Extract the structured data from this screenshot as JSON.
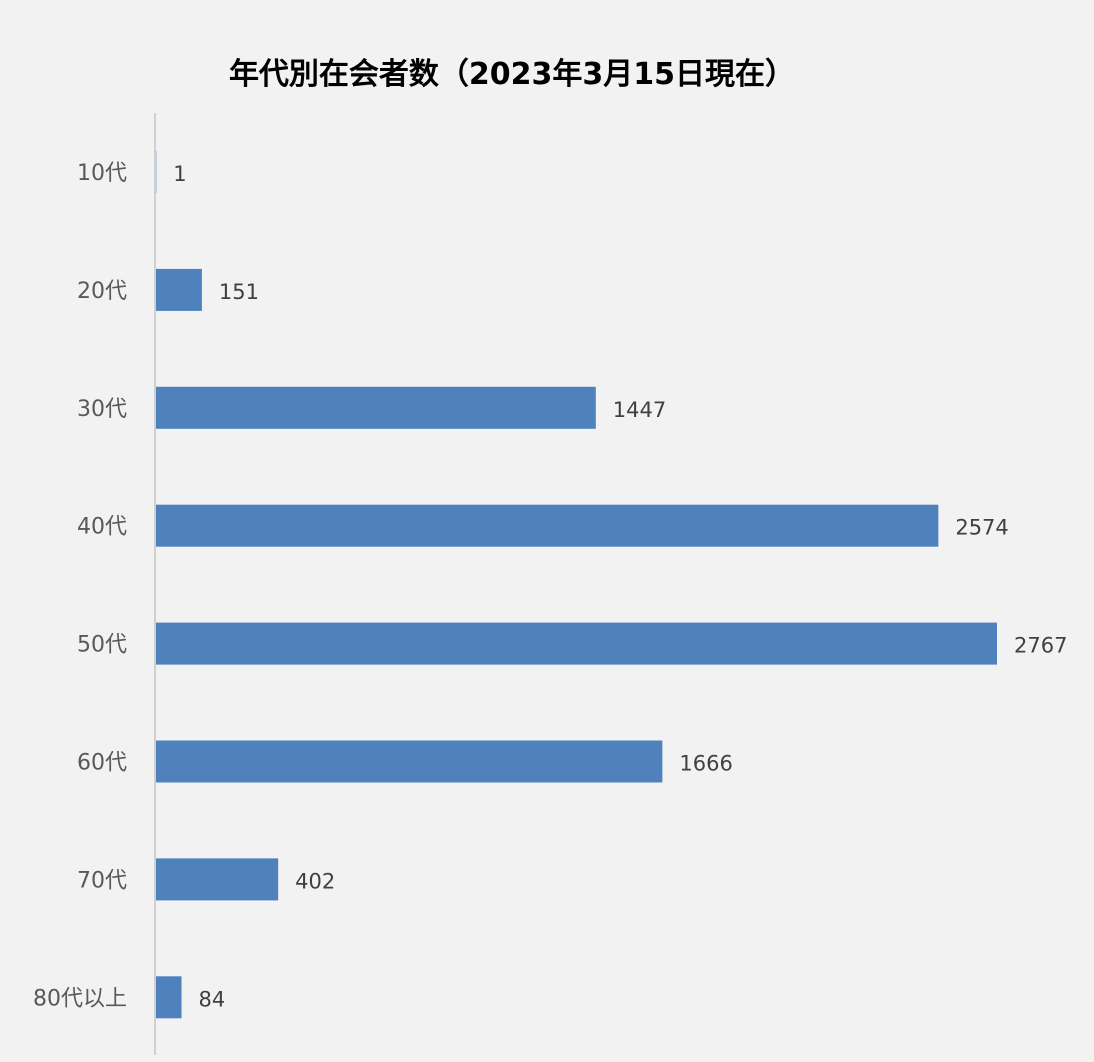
{
  "chart_data": {
    "type": "bar",
    "orientation": "horizontal",
    "title": "年代別在会者数（2023年3月15日現在）",
    "categories": [
      "10代",
      "20代",
      "30代",
      "40代",
      "50代",
      "60代",
      "70代",
      "80代以上"
    ],
    "values": [
      1,
      151,
      1447,
      2574,
      2767,
      1666,
      402,
      84
    ],
    "xlim": [
      0,
      2767
    ],
    "data_labels": true,
    "grid": false,
    "legend": "none",
    "bar_color": "#4f81bd",
    "background": "#f2f2f2"
  }
}
